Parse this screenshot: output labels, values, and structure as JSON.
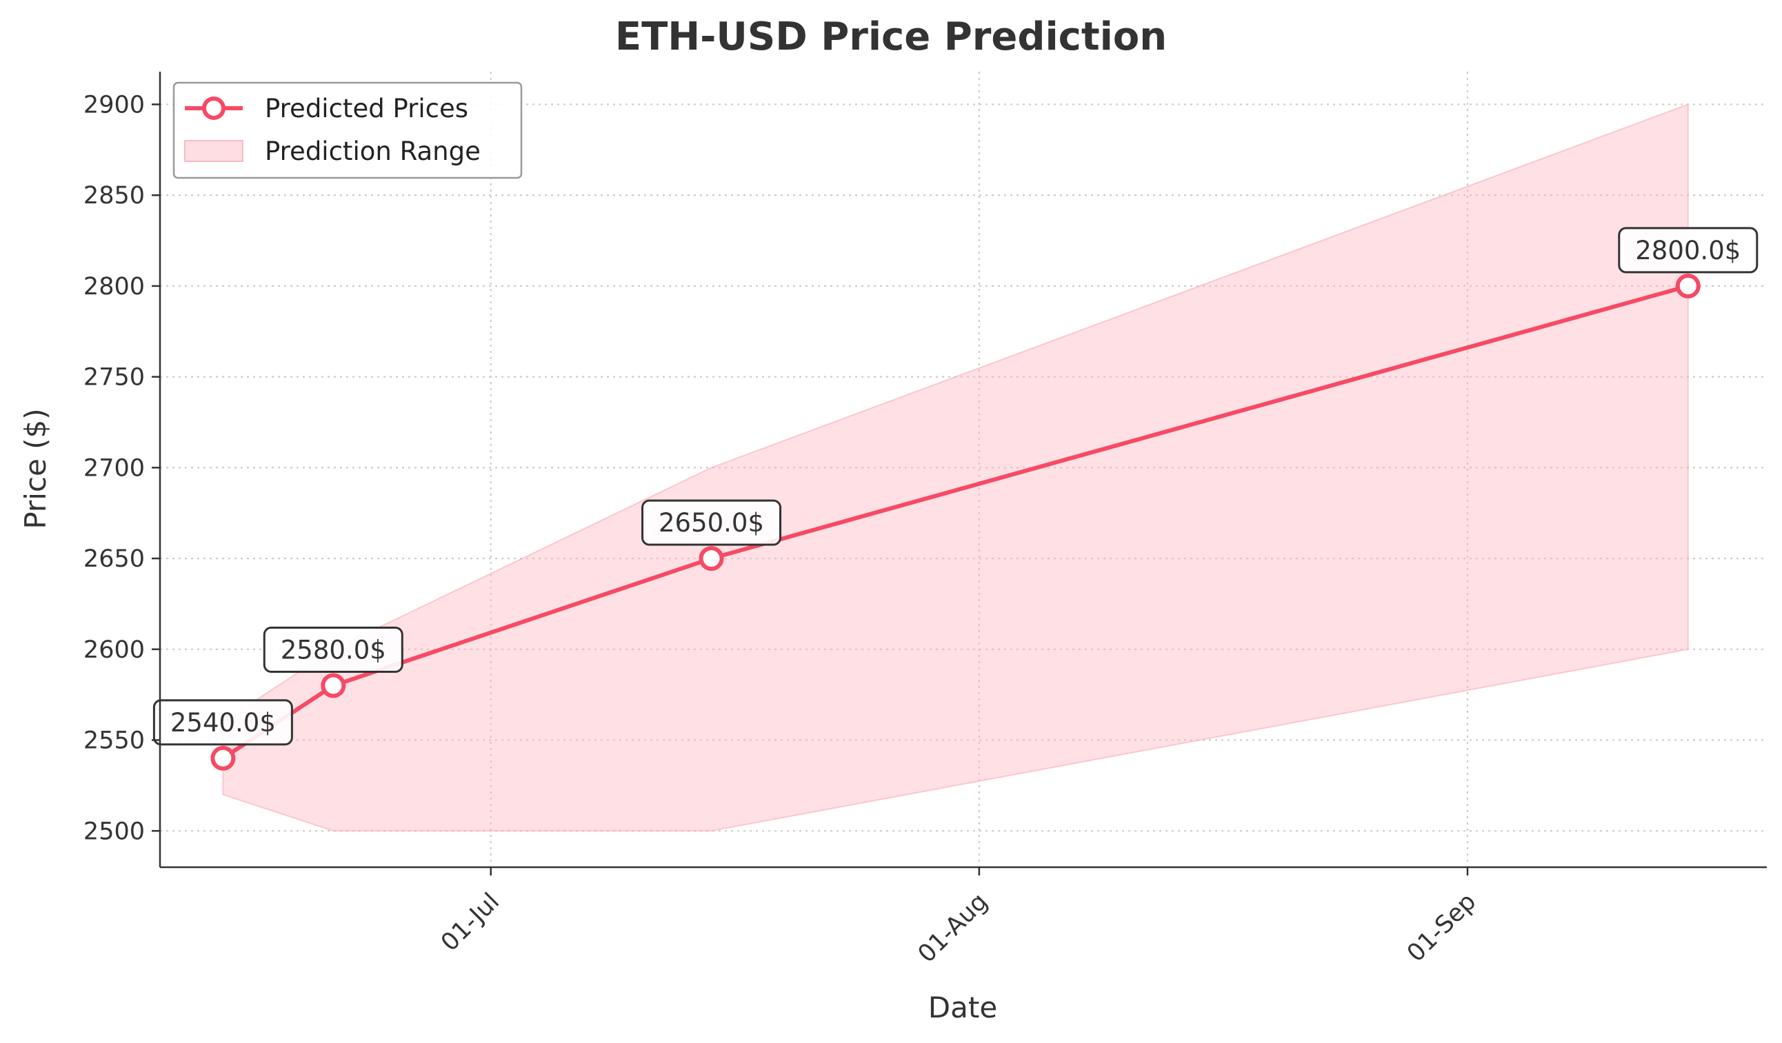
{
  "chart_data": {
    "type": "line",
    "title": "ETH-USD Price Prediction",
    "xlabel": "Date",
    "ylabel": "Price ($)",
    "x_dates": [
      "2024-06-14",
      "2024-06-21",
      "2024-07-15",
      "2024-09-15"
    ],
    "series": [
      {
        "name": "Predicted Prices",
        "values": [
          2540,
          2580,
          2650,
          2800
        ]
      }
    ],
    "range": {
      "name": "Prediction Range",
      "lower": [
        2520,
        2500,
        2500,
        2600
      ],
      "upper": [
        2560,
        2600,
        2700,
        2900
      ]
    },
    "annotations": [
      "2540.0$",
      "2580.0$",
      "2650.0$",
      "2800.0$"
    ],
    "ylim": [
      2480,
      2918
    ],
    "xlim": [
      "2024-06-10",
      "2024-09-20"
    ],
    "y_ticks": [
      2500,
      2550,
      2600,
      2650,
      2700,
      2750,
      2800,
      2850,
      2900
    ],
    "x_ticks": [
      {
        "date": "2024-07-01",
        "label": "01-Jul"
      },
      {
        "date": "2024-08-01",
        "label": "01-Aug"
      },
      {
        "date": "2024-09-01",
        "label": "01-Sep"
      }
    ],
    "grid": true,
    "legend_position": "top-left",
    "colors": {
      "line": "#F64A65",
      "fill": "#FFB6C1"
    }
  }
}
